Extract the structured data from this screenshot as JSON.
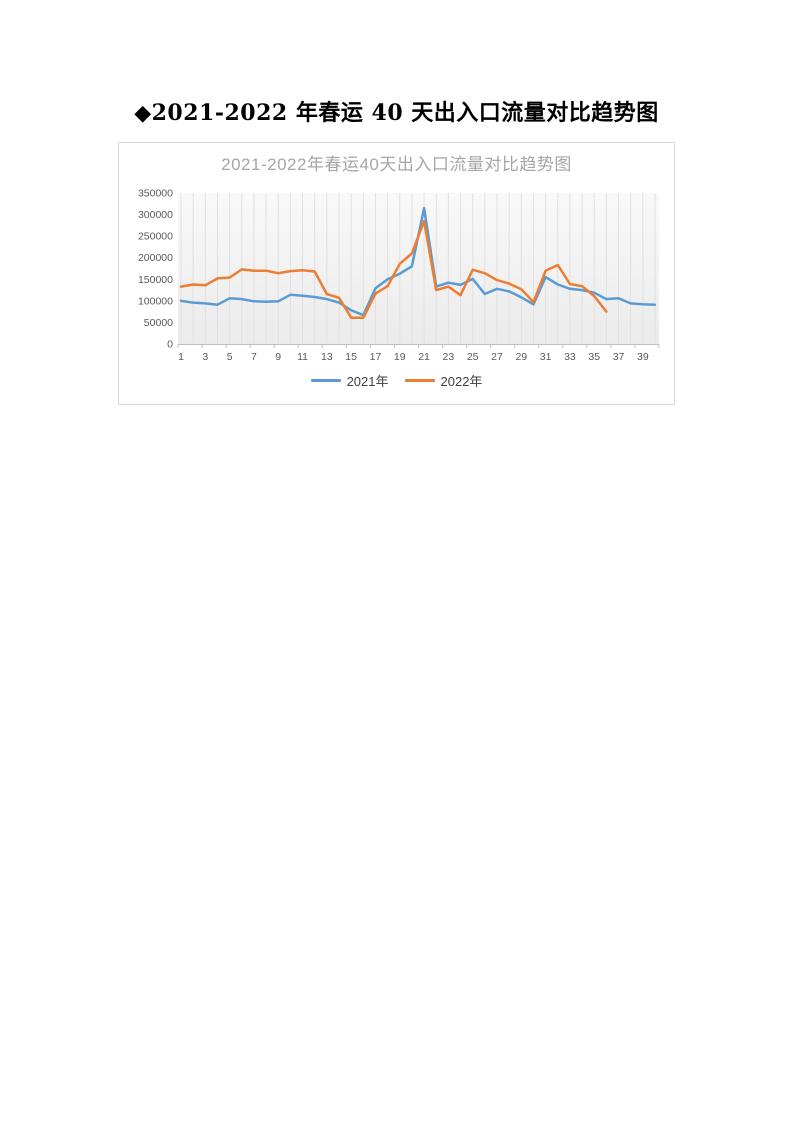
{
  "page": {
    "heading": "◆2021-2022 年春运 40 天出入口流量对比趋势图"
  },
  "chart_data": {
    "type": "line",
    "title": "2021-2022年春运40天出入口流量对比趋势图",
    "title_color": "#a6a6a6",
    "axis_text_color": "#595959",
    "x": [
      1,
      2,
      3,
      4,
      5,
      6,
      7,
      8,
      9,
      10,
      11,
      12,
      13,
      14,
      15,
      16,
      17,
      18,
      19,
      20,
      21,
      22,
      23,
      24,
      25,
      26,
      27,
      28,
      29,
      30,
      31,
      32,
      33,
      34,
      35,
      36,
      37,
      38,
      39,
      40
    ],
    "x_tick_labels": [
      "1",
      "3",
      "5",
      "7",
      "9",
      "11",
      "13",
      "15",
      "17",
      "19",
      "21",
      "23",
      "25",
      "27",
      "29",
      "31",
      "33",
      "35",
      "37",
      "39"
    ],
    "ylim": [
      0,
      350000
    ],
    "yticks": [
      0,
      50000,
      100000,
      150000,
      200000,
      250000,
      300000,
      350000
    ],
    "ytick_labels": [
      "0",
      "50000",
      "100000",
      "150000",
      "200000",
      "250000",
      "300000",
      "350000"
    ],
    "grid": "vertical-category-lines",
    "legend_position": "bottom",
    "series": [
      {
        "name": "2021年",
        "color": "#5B9BD5",
        "values": [
          100000,
          96000,
          94000,
          91000,
          106000,
          104000,
          99000,
          98000,
          99000,
          114000,
          112000,
          109000,
          104000,
          96000,
          78000,
          67000,
          129000,
          150000,
          163000,
          180000,
          315000,
          133000,
          142000,
          137000,
          151000,
          116000,
          128000,
          122000,
          108000,
          92000,
          155000,
          138000,
          128000,
          125000,
          119000,
          104000,
          106000,
          94000,
          92000,
          91000
        ]
      },
      {
        "name": "2022年",
        "color": "#ED7D31",
        "values": [
          133000,
          138000,
          136000,
          152000,
          154000,
          173000,
          170000,
          170000,
          164000,
          169000,
          171000,
          168000,
          116000,
          107000,
          61000,
          61000,
          117000,
          134000,
          186000,
          210000,
          285000,
          125000,
          133000,
          113000,
          172000,
          164000,
          148000,
          140000,
          127000,
          97000,
          170000,
          183000,
          139000,
          134000,
          111000,
          75000
        ]
      }
    ]
  }
}
